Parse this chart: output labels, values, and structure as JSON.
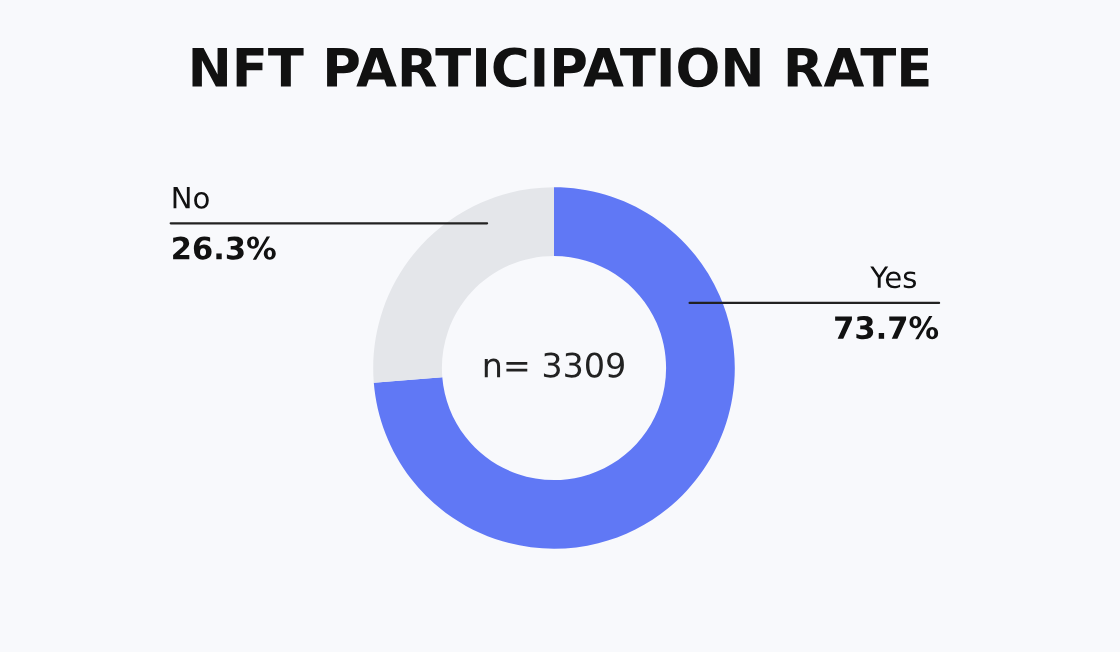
{
  "chart_data": {
    "type": "donut",
    "title": "NFT PARTICIPATION RATE",
    "categories": [
      "Yes",
      "No"
    ],
    "values": [
      73.7,
      26.3
    ],
    "colors": [
      "#6078f5",
      "#e4e6ea"
    ],
    "value_labels": [
      "73.7%",
      "26.3%"
    ],
    "annotations": [
      "n= 3309"
    ],
    "legend": false
  }
}
